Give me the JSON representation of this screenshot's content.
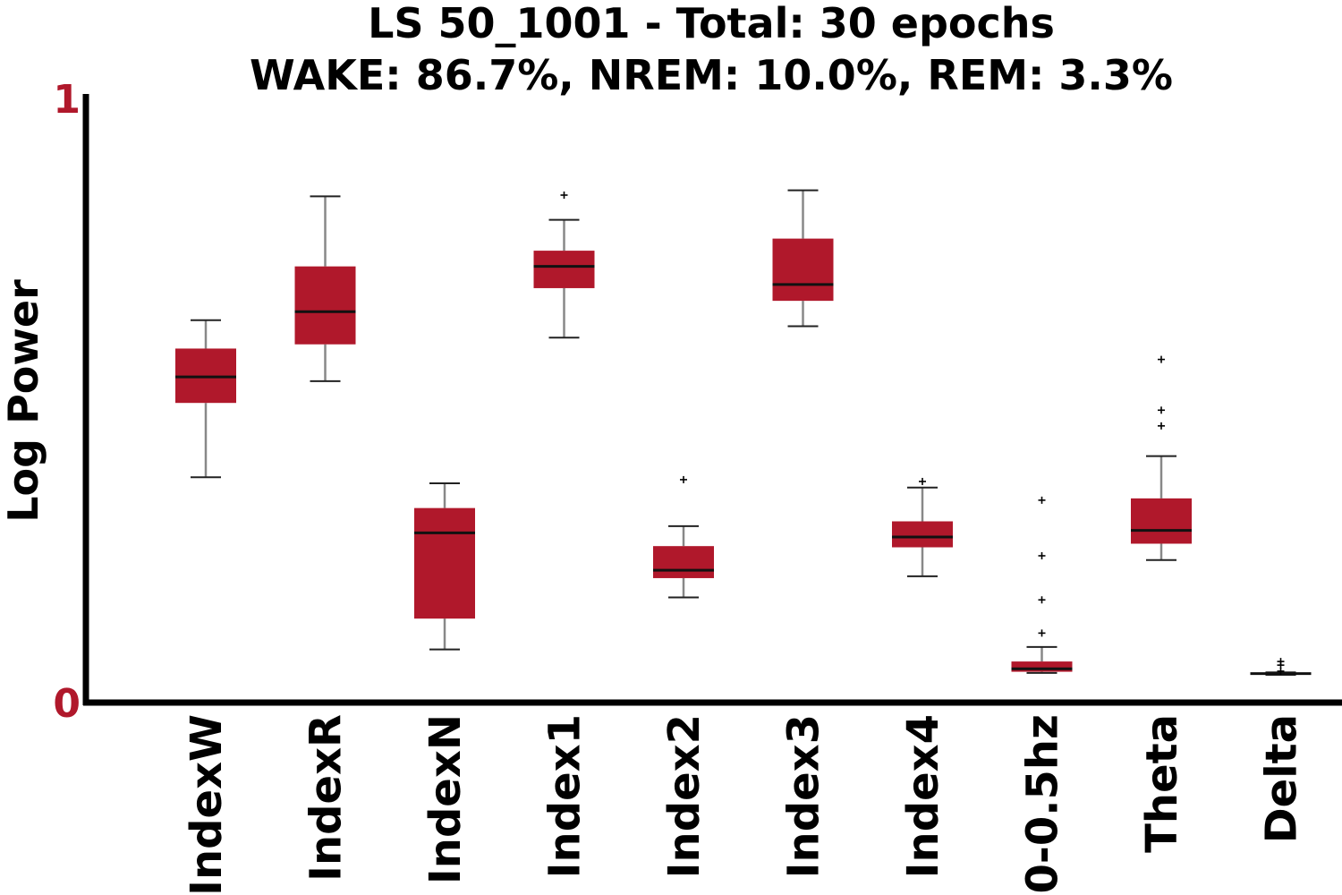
{
  "chart_data": {
    "type": "box",
    "title_line1": "LS 50_1001 - Total: 30 epochs",
    "title_line2": "WAKE: 86.7%, NREM: 10.0%, REM: 3.3%",
    "xlabel": "",
    "ylabel": "Log Power",
    "ylim": [
      0,
      1
    ],
    "yticks": [
      "0",
      "1"
    ],
    "grid": false,
    "colors": {
      "box": "#b0182b",
      "tick_label": "#b0182b",
      "median": "#111111",
      "whisker": "#888888",
      "axis": "#000000"
    },
    "categories": [
      "IndexW",
      "IndexR",
      "IndexN",
      "Index1",
      "Index2",
      "Index3",
      "Index4",
      "0-0.5hz",
      "Theta",
      "Delta"
    ],
    "boxes": [
      {
        "label": "IndexW",
        "whislo": 0.373,
        "q1": 0.496,
        "median": 0.539,
        "q3": 0.586,
        "whishi": 0.633,
        "fliers": []
      },
      {
        "label": "IndexR",
        "whislo": 0.532,
        "q1": 0.593,
        "median": 0.647,
        "q3": 0.722,
        "whishi": 0.838,
        "fliers": []
      },
      {
        "label": "IndexN",
        "whislo": 0.088,
        "q1": 0.139,
        "median": 0.281,
        "q3": 0.322,
        "whishi": 0.363,
        "fliers": []
      },
      {
        "label": "Index1",
        "whislo": 0.604,
        "q1": 0.686,
        "median": 0.722,
        "q3": 0.748,
        "whishi": 0.799,
        "fliers": [
          0.84
        ]
      },
      {
        "label": "Index2",
        "whislo": 0.174,
        "q1": 0.206,
        "median": 0.219,
        "q3": 0.259,
        "whishi": 0.292,
        "fliers": [
          0.369
        ]
      },
      {
        "label": "Index3",
        "whislo": 0.623,
        "q1": 0.665,
        "median": 0.692,
        "q3": 0.768,
        "whishi": 0.848,
        "fliers": []
      },
      {
        "label": "Index4",
        "whislo": 0.209,
        "q1": 0.257,
        "median": 0.274,
        "q3": 0.3,
        "whishi": 0.356,
        "fliers": [
          0.366
        ]
      },
      {
        "label": "0-0.5hz",
        "whislo": 0.049,
        "q1": 0.051,
        "median": 0.056,
        "q3": 0.068,
        "whishi": 0.092,
        "fliers": [
          0.115,
          0.17,
          0.243,
          0.335
        ]
      },
      {
        "label": "Theta",
        "whislo": 0.236,
        "q1": 0.263,
        "median": 0.285,
        "q3": 0.338,
        "whishi": 0.408,
        "fliers": [
          0.458,
          0.484,
          0.568
        ]
      },
      {
        "label": "Delta",
        "whislo": 0.046,
        "q1": 0.047,
        "median": 0.048,
        "q3": 0.049,
        "whishi": 0.05,
        "fliers": [
          0.052,
          0.062,
          0.068
        ]
      }
    ]
  }
}
